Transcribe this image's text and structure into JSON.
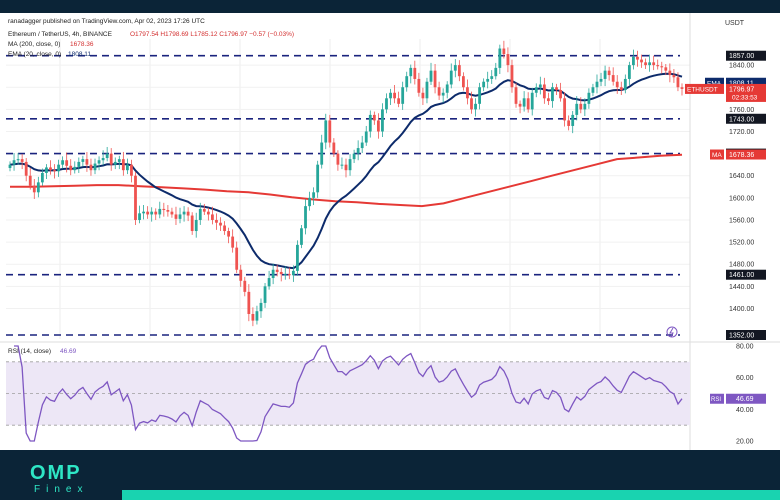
{
  "header": {
    "publisher": "ranadagger published on TradingView.com, Apr 02, 2023 17:26 UTC",
    "symbol": "Ethereum / TetherUS, 4h, BINANCE",
    "ohlc": "O1797.54  H1798.69  L1785.12  C1796.97  −0.57 (−0.03%)",
    "ma": "MA (200, close, 0)",
    "ma_value": "1678.36",
    "ema": "EMA (20, close, 0)",
    "ema_value": "1808.11"
  },
  "colors": {
    "candle_up": "#26a69a",
    "candle_down": "#ef5350",
    "ema": "#0d2b6b",
    "ma": "#e53935",
    "level": "#1a237e",
    "rsi": "#7e57c2"
  },
  "footer": {
    "brand": "OMP",
    "sub": "Finex"
  },
  "chart_data": [
    {
      "type": "candlestick",
      "title": "Ethereum / TetherUS, 4h, BINANCE",
      "currency_label": "USDT",
      "ylim": [
        1352,
        1880
      ],
      "ticks": [
        1840,
        1800,
        1760,
        1720,
        1640,
        1600,
        1560,
        1520,
        1480,
        1440,
        1400
      ],
      "levels": [
        {
          "value": 1857,
          "label": "1857.00"
        },
        {
          "value": 1743,
          "label": "1743.00"
        },
        {
          "value": 1680,
          "label": "1680.00"
        },
        {
          "value": 1461,
          "label": "1461.00"
        },
        {
          "value": 1352,
          "label": "1352.00"
        }
      ],
      "price_labels": [
        {
          "name": "EMA",
          "value": 1808.11,
          "text": "1808.11"
        },
        {
          "name": "ETHUSDT",
          "value": 1796.97,
          "text": "1796.97",
          "sub": "02:33:53"
        },
        {
          "name": "MA",
          "value": 1678.36,
          "text": "1678.36"
        }
      ],
      "close": [
        1660,
        1668,
        1670,
        1665,
        1640,
        1622,
        1610,
        1628,
        1645,
        1655,
        1650,
        1648,
        1660,
        1668,
        1658,
        1650,
        1656,
        1665,
        1670,
        1660,
        1650,
        1662,
        1668,
        1672,
        1680,
        1660,
        1665,
        1670,
        1650,
        1660,
        1640,
        1560,
        1572,
        1575,
        1570,
        1575,
        1570,
        1580,
        1578,
        1575,
        1570,
        1562,
        1570,
        1575,
        1568,
        1540,
        1560,
        1580,
        1575,
        1570,
        1560,
        1555,
        1550,
        1540,
        1530,
        1510,
        1470,
        1450,
        1430,
        1390,
        1378,
        1395,
        1410,
        1440,
        1455,
        1470,
        1466,
        1462,
        1462,
        1460,
        1468,
        1515,
        1545,
        1585,
        1600,
        1610,
        1660,
        1700,
        1740,
        1700,
        1680,
        1660,
        1660,
        1650,
        1670,
        1680,
        1690,
        1700,
        1720,
        1750,
        1740,
        1720,
        1760,
        1780,
        1790,
        1780,
        1770,
        1800,
        1820,
        1835,
        1815,
        1790,
        1780,
        1810,
        1830,
        1800,
        1785,
        1790,
        1805,
        1830,
        1840,
        1820,
        1800,
        1780,
        1760,
        1770,
        1800,
        1810,
        1815,
        1820,
        1835,
        1870,
        1860,
        1840,
        1800,
        1770,
        1765,
        1780,
        1760,
        1790,
        1800,
        1805,
        1780,
        1775,
        1800,
        1795,
        1780,
        1740,
        1730,
        1750,
        1770,
        1760,
        1770,
        1790,
        1800,
        1810,
        1815,
        1830,
        1822,
        1810,
        1800,
        1795,
        1815,
        1840,
        1855,
        1850,
        1845,
        1840,
        1845,
        1840,
        1838,
        1836,
        1830,
        1822,
        1818,
        1800,
        1796.97
      ],
      "ma200": [
        1620,
        1620,
        1621,
        1622,
        1623,
        1623,
        1621,
        1619,
        1617,
        1615,
        1612,
        1610,
        1606,
        1601,
        1597,
        1594,
        1592,
        1589,
        1587,
        1585,
        1590,
        1600,
        1610,
        1620,
        1630,
        1640,
        1650,
        1660,
        1670,
        1673,
        1676,
        1678
      ],
      "ema20_start_index": 0,
      "rsi": {
        "name": "RSI (14, close)",
        "value": 46.69,
        "value_text": "46.69",
        "ylim": [
          20,
          80
        ],
        "ticks": [
          80,
          60,
          40,
          20
        ],
        "band": [
          30,
          70
        ]
      }
    }
  ]
}
